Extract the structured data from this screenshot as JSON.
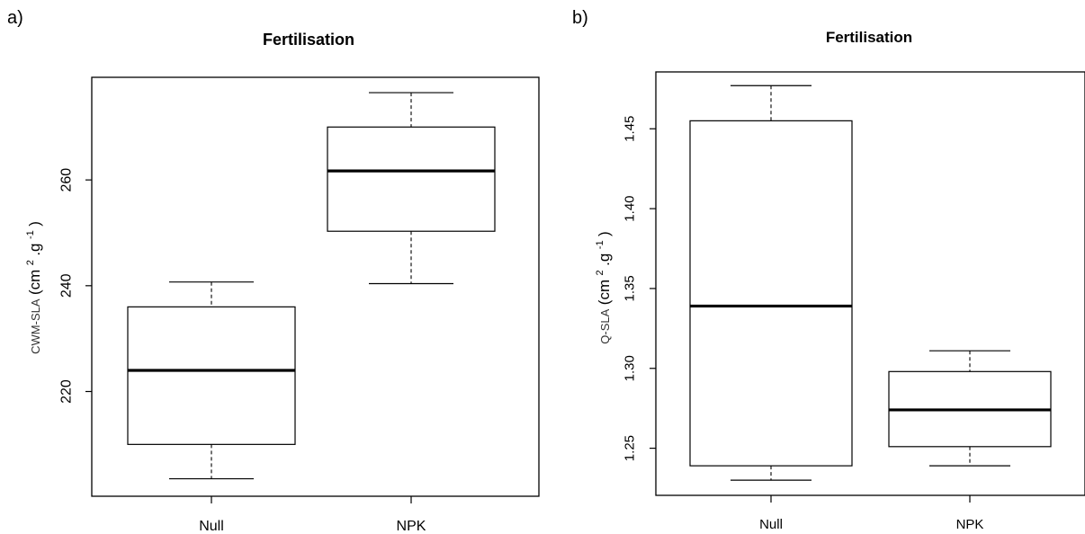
{
  "chart_data": [
    {
      "type": "box",
      "panel_label": "a)",
      "title": "Fertilisation",
      "ylabel_main": "CWM-SLA",
      "ylabel_unit": {
        "open": "(cm",
        "sup1": "2",
        "dot": ".g",
        "sup2": "-1",
        "close": ")"
      },
      "categories": [
        "Null",
        "NPK"
      ],
      "boxes": [
        {
          "category": "Null",
          "whisker_low": 203.5,
          "q1": 210.0,
          "median": 224.0,
          "q3": 236.0,
          "whisker_high": 240.7
        },
        {
          "category": "NPK",
          "whisker_low": 240.4,
          "q1": 250.3,
          "median": 261.7,
          "q3": 270.0,
          "whisker_high": 276.5
        }
      ],
      "yticks": [
        220,
        240,
        260
      ],
      "ytick_labels": [
        "220",
        "240",
        "260"
      ],
      "ylim": [
        200.2,
        279.4
      ]
    },
    {
      "type": "box",
      "panel_label": "b)",
      "title": "Fertilisation",
      "ylabel_main": "Q-SLA",
      "ylabel_unit": {
        "open": "(cm",
        "sup1": "2",
        "dot": ".g",
        "sup2": "-1",
        "close": ")"
      },
      "categories": [
        "Null",
        "NPK"
      ],
      "boxes": [
        {
          "category": "Null",
          "whisker_low": 1.23,
          "q1": 1.239,
          "median": 1.339,
          "q3": 1.455,
          "whisker_high": 1.477
        },
        {
          "category": "NPK",
          "whisker_low": 1.239,
          "q1": 1.251,
          "median": 1.274,
          "q3": 1.298,
          "whisker_high": 1.311
        }
      ],
      "yticks": [
        1.25,
        1.3,
        1.35,
        1.4,
        1.45
      ],
      "ytick_labels": [
        "1.25",
        "1.30",
        "1.35",
        "1.40",
        "1.45"
      ],
      "ylim": [
        1.2205,
        1.4856
      ]
    }
  ]
}
